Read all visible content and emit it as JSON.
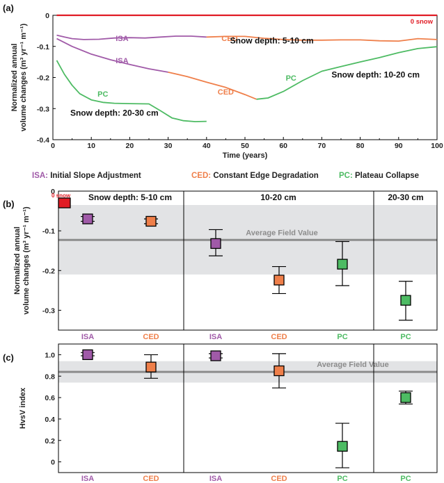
{
  "colors": {
    "ISA": "#a05aa8",
    "CED": "#ef7f4a",
    "PC": "#4dbb63",
    "zero": "#e01b24",
    "field": "#8c8c8c",
    "band": "#e2e3e5",
    "axis": "#000000"
  },
  "legend": [
    {
      "abbr": "ISA:",
      "text": "Initial Slope Adjustment",
      "key": "ISA"
    },
    {
      "abbr": "CED:",
      "text": "Constant Edge Degradation",
      "key": "CED"
    },
    {
      "abbr": "PC:",
      "text": "Plateau Collapse",
      "key": "PC"
    }
  ],
  "chart_data": [
    {
      "panel": "(a)",
      "type": "line",
      "xlabel": "Time (years)",
      "ylabel": "Normalized annual volume changes (m³ yr⁻¹ m⁻¹)",
      "xlim": [
        0,
        100
      ],
      "ylim": [
        -0.4,
        0
      ],
      "xticks": [
        "0",
        "10",
        "20",
        "30",
        "40",
        "50",
        "60",
        "70",
        "80",
        "90",
        "100"
      ],
      "yticks": [
        "0",
        "-0.1",
        "-0.2",
        "-0.3",
        "-0.4"
      ],
      "annotations": [
        "0 snow",
        "Snow depth: 5-10 cm",
        "Snow depth: 10-20 cm",
        "Snow depth: 20-30 cm"
      ],
      "series": [
        {
          "key": "zero",
          "label": "",
          "x": [
            1,
            100
          ],
          "y": [
            0,
            0
          ]
        },
        {
          "key": "ISA",
          "label": "ISA",
          "x": [
            1,
            3,
            5,
            8,
            12,
            16,
            20,
            24,
            28,
            32,
            36,
            40
          ],
          "y": [
            -0.064,
            -0.07,
            -0.075,
            -0.078,
            -0.077,
            -0.073,
            -0.072,
            -0.073,
            -0.07,
            -0.067,
            -0.067,
            -0.07
          ]
        },
        {
          "key": "CED",
          "label": "CED",
          "x": [
            40,
            45,
            50,
            55,
            60,
            65,
            70,
            75,
            80,
            85,
            90,
            95,
            100
          ],
          "y": [
            -0.07,
            -0.068,
            -0.068,
            -0.074,
            -0.078,
            -0.08,
            -0.08,
            -0.079,
            -0.079,
            -0.082,
            -0.083,
            -0.075,
            -0.078
          ]
        },
        {
          "key": "ISA",
          "label": "ISA",
          "x": [
            1,
            5,
            10,
            15,
            20,
            25,
            30
          ],
          "y": [
            -0.075,
            -0.1,
            -0.125,
            -0.143,
            -0.158,
            -0.172,
            -0.183
          ]
        },
        {
          "key": "CED",
          "label": "CED",
          "x": [
            30,
            35,
            40,
            45,
            50,
            53
          ],
          "y": [
            -0.183,
            -0.197,
            -0.215,
            -0.232,
            -0.255,
            -0.27
          ]
        },
        {
          "key": "PC",
          "label": "PC",
          "x": [
            53,
            56,
            60,
            65,
            70,
            75,
            80,
            85,
            90,
            95,
            100
          ],
          "y": [
            -0.27,
            -0.266,
            -0.245,
            -0.21,
            -0.18,
            -0.165,
            -0.15,
            -0.136,
            -0.12,
            -0.107,
            -0.101
          ]
        },
        {
          "key": "PC",
          "label": "PC",
          "x": [
            1,
            3,
            5,
            7,
            10,
            13,
            16,
            20,
            25,
            28,
            31,
            34,
            37,
            40
          ],
          "y": [
            -0.145,
            -0.19,
            -0.225,
            -0.252,
            -0.272,
            -0.28,
            -0.283,
            -0.284,
            -0.285,
            -0.307,
            -0.33,
            -0.339,
            -0.342,
            -0.341
          ]
        }
      ],
      "line_labels": [
        {
          "text": "ISA",
          "key": "ISA",
          "x": 18,
          "y": -0.083
        },
        {
          "text": "CED",
          "key": "CED",
          "x": 46,
          "y": -0.083
        },
        {
          "text": "ISA",
          "key": "ISA",
          "x": 18,
          "y": -0.154
        },
        {
          "text": "CED",
          "key": "CED",
          "x": 45,
          "y": -0.255
        },
        {
          "text": "PC",
          "key": "PC",
          "x": 13,
          "y": -0.262
        },
        {
          "text": "PC",
          "key": "PC",
          "x": 62,
          "y": -0.21
        }
      ]
    },
    {
      "panel": "(b)",
      "type": "scatter",
      "ylabel": "Normalized annual volume changes (m³ yr⁻¹ m⁻¹)",
      "ylim": [
        -0.35,
        0
      ],
      "yticks": [
        "0",
        "-0.1",
        "-0.2",
        "-0.3"
      ],
      "groups": [
        "Snow depth: 5-10 cm",
        "10-20 cm",
        "20-30 cm"
      ],
      "zero_label": "0 snow",
      "field_label": "Average Field Value",
      "field_value": -0.123,
      "field_band": [
        -0.21,
        -0.035
      ],
      "points": [
        {
          "cat": "ISA",
          "key": "ISA",
          "value": -0.07,
          "low": -0.076,
          "high": -0.064
        },
        {
          "cat": "CED",
          "key": "CED",
          "value": -0.076,
          "low": -0.082,
          "high": -0.07
        },
        {
          "cat": "ISA",
          "key": "ISA",
          "value": -0.132,
          "low": -0.163,
          "high": -0.097
        },
        {
          "cat": "CED",
          "key": "CED",
          "value": -0.224,
          "low": -0.258,
          "high": -0.19
        },
        {
          "cat": "PC",
          "key": "PC",
          "value": -0.184,
          "low": -0.238,
          "high": -0.127
        },
        {
          "cat": "PC",
          "key": "PC",
          "value": -0.275,
          "low": -0.325,
          "high": -0.227
        }
      ]
    },
    {
      "panel": "(c)",
      "type": "scatter",
      "ylabel": "HvsV index",
      "ylim": [
        -0.1,
        1.1
      ],
      "yticks": [
        "1.0",
        "0.8",
        "0.6",
        "0.4",
        "0.2",
        "0"
      ],
      "field_label": "Average Field  Value",
      "field_value": 0.84,
      "field_band": [
        0.74,
        0.94
      ],
      "points": [
        {
          "cat": "ISA",
          "key": "ISA",
          "value": 1.0,
          "low": 0.99,
          "high": 1.02
        },
        {
          "cat": "CED",
          "key": "CED",
          "value": 0.885,
          "low": 0.78,
          "high": 1.0
        },
        {
          "cat": "ISA",
          "key": "ISA",
          "value": 0.99,
          "low": 0.97,
          "high": 1.01
        },
        {
          "cat": "CED",
          "key": "CED",
          "value": 0.85,
          "low": 0.69,
          "high": 1.01
        },
        {
          "cat": "PC",
          "key": "PC",
          "value": 0.145,
          "low": -0.055,
          "high": 0.36
        },
        {
          "cat": "PC",
          "key": "PC",
          "value": 0.6,
          "low": 0.54,
          "high": 0.66
        }
      ]
    }
  ]
}
